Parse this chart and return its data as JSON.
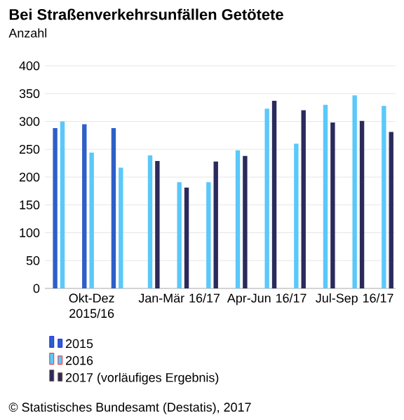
{
  "chart_data": {
    "type": "bar",
    "title": "Bei Straßenverkehrsunfällen Getötete",
    "ylabel": "Anzahl",
    "categories": [
      null,
      "Okt-Dez 2015/16",
      null,
      null,
      "Jan-Mär 16/17",
      null,
      null,
      "Apr-Jun 16/17",
      null,
      null,
      "Jul-Sep 16/17",
      null
    ],
    "series": [
      {
        "name": "2015",
        "color": "#2e5fc8",
        "values": [
          288,
          295,
          288,
          null,
          null,
          null,
          null,
          null,
          null,
          null,
          null,
          null
        ]
      },
      {
        "name": "2016",
        "color": "#5bc8fa",
        "values": [
          300,
          244,
          217,
          239,
          191,
          191,
          248,
          323,
          260,
          330,
          347,
          328
        ]
      },
      {
        "name": "2017 (vorläufiges Ergebnis)",
        "color": "#2b2a5c",
        "values": [
          null,
          null,
          null,
          229,
          181,
          228,
          238,
          337,
          320,
          298,
          301,
          281
        ]
      }
    ],
    "ylim": [
      0,
      400
    ],
    "yticks": [
      0,
      50,
      100,
      150,
      200,
      250,
      300,
      350,
      400
    ],
    "grid": "y",
    "legend": "bottom",
    "annotations": [
      "© Statistisches Bundesamt (Destatis), 2017"
    ]
  }
}
